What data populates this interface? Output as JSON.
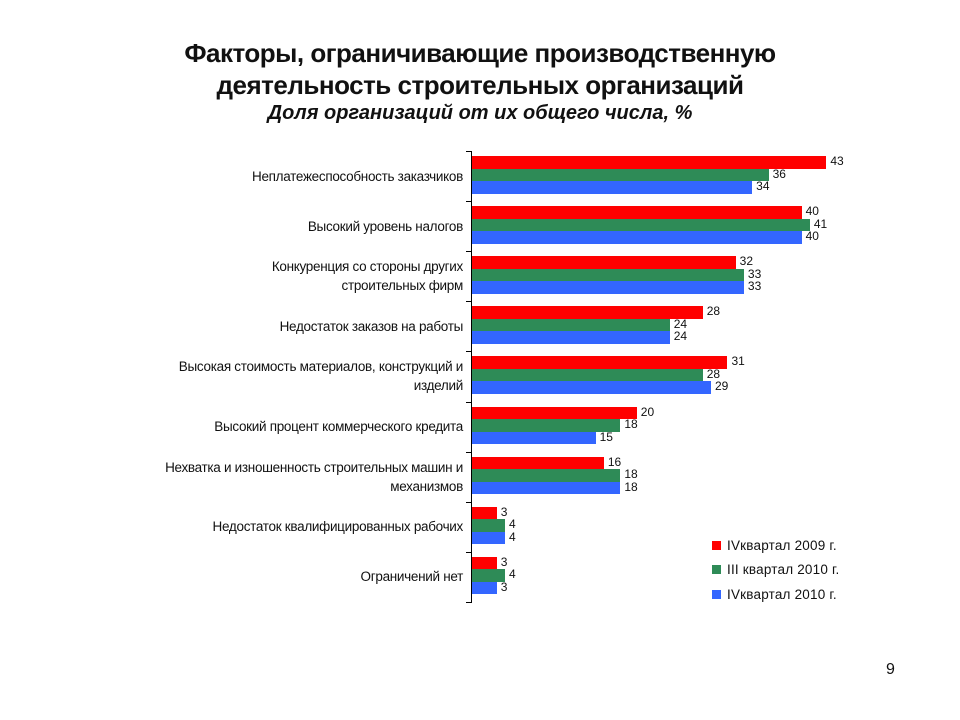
{
  "slide": {
    "title_line1": "Факторы, ограничивающие производственную",
    "title_line2": "деятельность строительных организаций",
    "subtitle": "Доля организаций от их общего числа, %",
    "page_number": "9"
  },
  "legend": [
    {
      "label": "IVквартал 2009 г.",
      "color": "#FF0000"
    },
    {
      "label": "III квартал 2010 г.",
      "color": "#2E8B57"
    },
    {
      "label": "IVквартал 2010 г.",
      "color": "#3366FF"
    }
  ],
  "chart_data": {
    "type": "bar",
    "orientation": "horizontal",
    "title": "Факторы, ограничивающие производственную деятельность строительных организаций",
    "subtitle": "Доля организаций от их общего числа, %",
    "xlabel": "",
    "ylabel": "",
    "xlim": [
      0,
      45
    ],
    "grid": false,
    "legend_position": "lower right",
    "categories": [
      [
        "Неплатежеспособность заказчиков"
      ],
      [
        "Высокий уровень налогов"
      ],
      [
        "Конкуренция со стороны других",
        "строительных фирм"
      ],
      [
        "Недостаток заказов на работы"
      ],
      [
        "Высокая стоимость материалов, конструкций и",
        "изделий"
      ],
      [
        "Высокий процент коммерческого кредита"
      ],
      [
        "Нехватка и изношенность строительных машин и",
        "механизмов"
      ],
      [
        "Недостаток квалифицированных рабочих"
      ],
      [
        "Ограничений нет"
      ]
    ],
    "series": [
      {
        "name": "IVквартал 2009 г.",
        "color": "#FF0000",
        "values": [
          43,
          40,
          32,
          28,
          31,
          20,
          16,
          3,
          3
        ]
      },
      {
        "name": "III квартал 2010 г.",
        "color": "#2E8B57",
        "values": [
          36,
          41,
          33,
          24,
          28,
          18,
          18,
          4,
          4
        ]
      },
      {
        "name": "IVквартал 2010 г.",
        "color": "#3366FF",
        "values": [
          34,
          40,
          33,
          24,
          29,
          15,
          18,
          4,
          3
        ]
      }
    ]
  }
}
